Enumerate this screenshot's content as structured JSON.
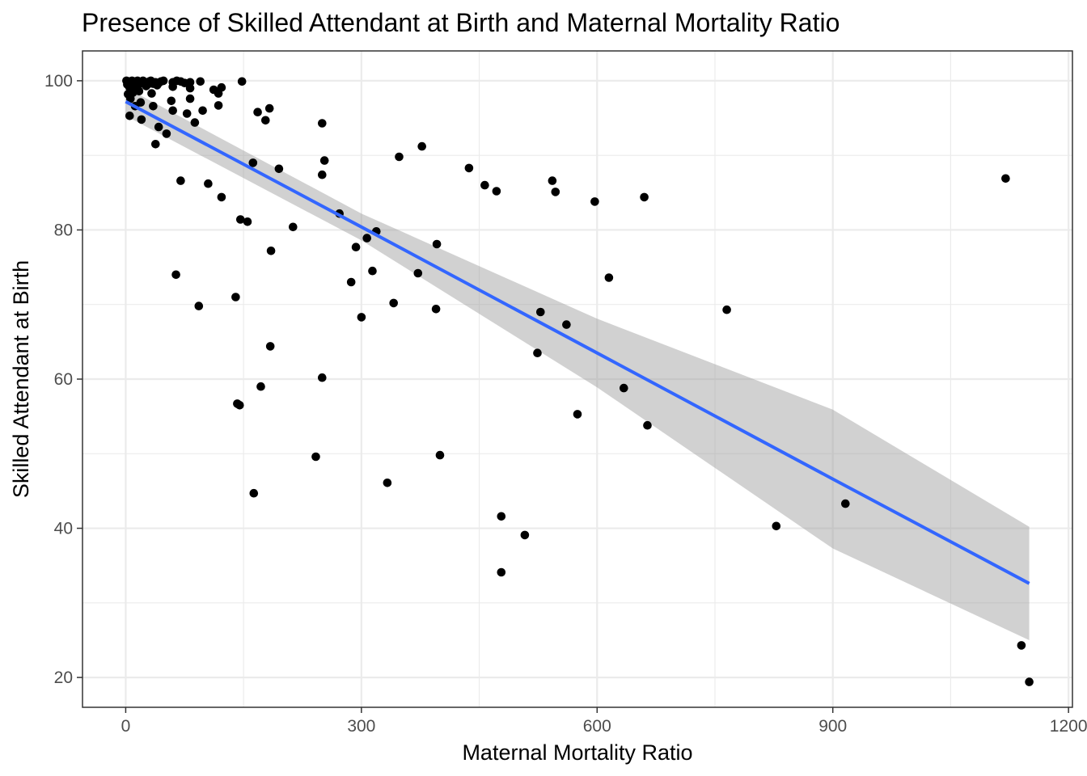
{
  "chart_data": {
    "type": "scatter",
    "title": "Presence of Skilled Attendant at Birth and Maternal Mortality Ratio",
    "xlabel": "Maternal Mortality Ratio",
    "ylabel": "Skilled Attendant at Birth",
    "xlim": [
      -55,
      1205
    ],
    "ylim": [
      16,
      104
    ],
    "xticks": [
      0,
      300,
      600,
      900,
      1200
    ],
    "xtick_labels": [
      "0",
      "300",
      "600",
      "900",
      "1200"
    ],
    "yticks": [
      20,
      40,
      60,
      80,
      100
    ],
    "ytick_labels": [
      "20",
      "40",
      "60",
      "80",
      "100"
    ],
    "grid": true,
    "point_color": "#000000",
    "trend_color": "#3366FF",
    "band_color": "#999999",
    "trend": {
      "method": "linear",
      "x": [
        0,
        300,
        600,
        900,
        1150
      ],
      "y": [
        97.2,
        80.4,
        63.5,
        46.6,
        32.6
      ],
      "ci_lower": [
        95.3,
        78.6,
        58.9,
        37.3,
        25.0
      ],
      "ci_upper": [
        99.1,
        82.2,
        68.1,
        55.9,
        40.2
      ]
    },
    "points": [
      [
        1,
        100
      ],
      [
        3,
        99.8
      ],
      [
        5,
        99.9
      ],
      [
        2,
        99.5
      ],
      [
        8,
        100
      ],
      [
        10,
        99.7
      ],
      [
        12,
        99.9
      ],
      [
        15,
        100
      ],
      [
        18,
        99.6
      ],
      [
        20,
        99.8
      ],
      [
        22,
        100
      ],
      [
        25,
        99.7
      ],
      [
        28,
        99.5
      ],
      [
        30,
        99.9
      ],
      [
        32,
        100
      ],
      [
        35,
        99.6
      ],
      [
        38,
        99.8
      ],
      [
        40,
        99.4
      ],
      [
        42,
        99.7
      ],
      [
        45,
        99.9
      ],
      [
        48,
        100
      ],
      [
        5,
        99.1
      ],
      [
        7,
        98.8
      ],
      [
        9,
        98.4
      ],
      [
        11,
        99.2
      ],
      [
        14,
        99.0
      ],
      [
        17,
        98.6
      ],
      [
        3,
        98.2
      ],
      [
        6,
        97.6
      ],
      [
        26,
        99.3
      ],
      [
        60,
        99.8
      ],
      [
        65,
        100
      ],
      [
        70,
        99.9
      ],
      [
        75,
        99.7
      ],
      [
        82,
        99.8
      ],
      [
        95,
        99.9
      ],
      [
        60,
        99.2
      ],
      [
        82,
        99.0
      ],
      [
        112,
        98.8
      ],
      [
        118,
        98.3
      ],
      [
        122,
        99.1
      ],
      [
        148,
        99.9
      ],
      [
        19,
        97.1
      ],
      [
        33,
        98.3
      ],
      [
        58,
        97.3
      ],
      [
        82,
        97.6
      ],
      [
        118,
        96.7
      ],
      [
        5,
        95.3
      ],
      [
        12,
        96.6
      ],
      [
        20,
        94.8
      ],
      [
        35,
        96.6
      ],
      [
        42,
        93.8
      ],
      [
        52,
        92.9
      ],
      [
        60,
        96.0
      ],
      [
        78,
        95.6
      ],
      [
        88,
        94.4
      ],
      [
        98,
        96.0
      ],
      [
        38,
        91.5
      ],
      [
        168,
        95.8
      ],
      [
        178,
        94.7
      ],
      [
        183,
        96.3
      ],
      [
        250,
        94.3
      ],
      [
        70,
        86.6
      ],
      [
        105,
        86.2
      ],
      [
        122,
        84.4
      ],
      [
        162,
        89.0
      ],
      [
        195,
        88.2
      ],
      [
        250,
        87.4
      ],
      [
        253,
        89.3
      ],
      [
        348,
        89.8
      ],
      [
        377,
        91.2
      ],
      [
        437,
        88.3
      ],
      [
        457,
        86.0
      ],
      [
        472,
        85.2
      ],
      [
        543,
        86.6
      ],
      [
        547,
        85.1
      ],
      [
        597,
        83.8
      ],
      [
        660,
        84.4
      ],
      [
        1120,
        86.9
      ],
      [
        146,
        81.4
      ],
      [
        155,
        81.1
      ],
      [
        213,
        80.4
      ],
      [
        272,
        82.2
      ],
      [
        293,
        77.7
      ],
      [
        307,
        78.9
      ],
      [
        319,
        79.8
      ],
      [
        396,
        78.1
      ],
      [
        185,
        77.2
      ],
      [
        372,
        74.2
      ],
      [
        314,
        74.5
      ],
      [
        287,
        73.0
      ],
      [
        615,
        73.6
      ],
      [
        64,
        74.0
      ],
      [
        93,
        69.8
      ],
      [
        140,
        71.0
      ],
      [
        300,
        68.3
      ],
      [
        341,
        70.2
      ],
      [
        395,
        69.4
      ],
      [
        528,
        69.0
      ],
      [
        561,
        67.3
      ],
      [
        765,
        69.3
      ],
      [
        184,
        64.4
      ],
      [
        250,
        60.2
      ],
      [
        524,
        63.5
      ],
      [
        142,
        56.7
      ],
      [
        145,
        56.5
      ],
      [
        172,
        59.0
      ],
      [
        634,
        58.8
      ],
      [
        575,
        55.3
      ],
      [
        664,
        53.8
      ],
      [
        242,
        49.6
      ],
      [
        400,
        49.8
      ],
      [
        163,
        44.7
      ],
      [
        333,
        46.1
      ],
      [
        478,
        41.6
      ],
      [
        508,
        39.1
      ],
      [
        828,
        40.3
      ],
      [
        916,
        43.3
      ],
      [
        478,
        34.1
      ],
      [
        1140,
        24.3
      ],
      [
        1150,
        19.4
      ]
    ]
  }
}
